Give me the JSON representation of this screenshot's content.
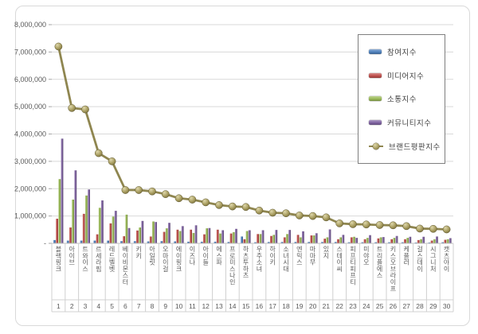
{
  "frame": {
    "background": "#ffffff",
    "border_color": "#d9d9d9"
  },
  "chart_data": {
    "type": "bar",
    "title": "",
    "xlabel": "",
    "ylabel": "",
    "ylim": [
      0,
      8000000
    ],
    "yticks": [
      0,
      1000000,
      2000000,
      3000000,
      4000000,
      5000000,
      6000000,
      7000000,
      8000000
    ],
    "ytick_labels": [
      "-",
      "1,000,000",
      "2,000,000",
      "3,000,000",
      "4,000,000",
      "5,000,000",
      "6,000,000",
      "7,000,000",
      "8,000,000"
    ],
    "grid": true,
    "legend_position": "inside-top-right",
    "categories": [
      "블랙핑크",
      "아이브",
      "트와이스",
      "르세라핌",
      "레드벨벳",
      "베이비몬스터",
      "키키",
      "아일릿",
      "오마이걸",
      "에이핑크",
      "이즈나",
      "아이들",
      "에스파",
      "프로미스나인",
      "하츠투하츠",
      "우주소녀",
      "하이키",
      "소녀시대",
      "엔믹스",
      "마마무",
      "있지",
      "스테이씨",
      "피프티피프티",
      "미야오",
      "트리플에스",
      "키스오브라이프",
      "케플러",
      "걸스데이",
      "시그니처",
      "캣츠아이"
    ],
    "category_ranks": [
      "1",
      "2",
      "3",
      "4",
      "5",
      "6",
      "7",
      "8",
      "9",
      "10",
      "11",
      "12",
      "13",
      "14",
      "15",
      "16",
      "17",
      "18",
      "19",
      "20",
      "21",
      "22",
      "23",
      "24",
      "25",
      "26",
      "27",
      "28",
      "29",
      "30"
    ],
    "series": [
      {
        "name": "참여지수",
        "color": "#4F81BD",
        "values": [
          120000,
          100000,
          100000,
          100000,
          100000,
          80000,
          80000,
          70000,
          80000,
          70000,
          60000,
          60000,
          60000,
          50000,
          250000,
          40000,
          50000,
          50000,
          50000,
          50000,
          50000,
          50000,
          40000,
          40000,
          40000,
          40000,
          40000,
          30000,
          30000,
          40000
        ]
      },
      {
        "name": "미디어지수",
        "color": "#C0504D",
        "values": [
          900000,
          580000,
          1080000,
          330000,
          730000,
          260000,
          470000,
          250000,
          420000,
          500000,
          500000,
          330000,
          500000,
          360000,
          150000,
          340000,
          270000,
          220000,
          310000,
          290000,
          170000,
          150000,
          220000,
          150000,
          180000,
          150000,
          150000,
          120000,
          100000,
          130000
        ]
      },
      {
        "name": "소통지수",
        "color": "#9BBB59",
        "values": [
          2350000,
          1600000,
          1750000,
          1300000,
          980000,
          1050000,
          580000,
          800000,
          550000,
          450000,
          380000,
          550000,
          360000,
          410000,
          450000,
          340000,
          310000,
          340000,
          220000,
          290000,
          220000,
          220000,
          240000,
          200000,
          220000,
          200000,
          200000,
          150000,
          150000,
          150000
        ]
      },
      {
        "name": "커뮤니티지수",
        "color": "#8064A2",
        "values": [
          3830000,
          2670000,
          1970000,
          1570000,
          1190000,
          560000,
          820000,
          780000,
          750000,
          630000,
          660000,
          560000,
          480000,
          530000,
          480000,
          480000,
          490000,
          490000,
          440000,
          370000,
          510000,
          310000,
          200000,
          300000,
          230000,
          270000,
          240000,
          240000,
          250000,
          190000
        ]
      }
    ],
    "line_series": {
      "name": "브랜드평판지수",
      "color": "#8f8650",
      "values": [
        7200000,
        4950000,
        4900000,
        3300000,
        3000000,
        1950000,
        1950000,
        1900000,
        1800000,
        1650000,
        1600000,
        1500000,
        1400000,
        1350000,
        1330000,
        1200000,
        1120000,
        1100000,
        1020000,
        1000000,
        950000,
        730000,
        700000,
        690000,
        670000,
        660000,
        630000,
        540000,
        530000,
        510000
      ]
    }
  }
}
